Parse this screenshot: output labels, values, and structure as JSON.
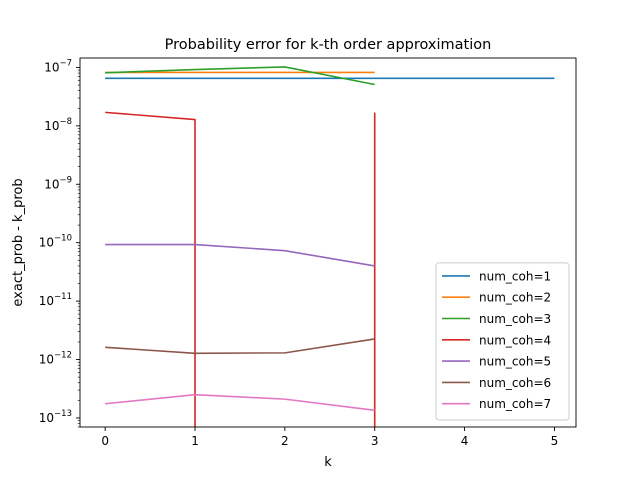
{
  "chart_data": {
    "type": "line",
    "title": "Probability error for k-th order approximation",
    "xlabel": "k",
    "ylabel": "exact_prob - k_prob",
    "yscale": "log",
    "xlim": [
      -0.28,
      5.24
    ],
    "ylim": [
      7e-14,
      1.45e-07
    ],
    "xticks": [
      0,
      1,
      2,
      3,
      4,
      5
    ],
    "yticks": [
      {
        "value": 1e-13,
        "base": "10",
        "exp": "−13"
      },
      {
        "value": 1e-12,
        "base": "10",
        "exp": "−12"
      },
      {
        "value": 1e-11,
        "base": "10",
        "exp": "−11"
      },
      {
        "value": 1e-10,
        "base": "10",
        "exp": "−10"
      },
      {
        "value": 1e-09,
        "base": "10",
        "exp": "−9"
      },
      {
        "value": 1e-08,
        "base": "10",
        "exp": "−8"
      },
      {
        "value": 1e-07,
        "base": "10",
        "exp": "−7"
      }
    ],
    "grid": false,
    "legend_position": "lower-right",
    "series": [
      {
        "name": "num_coh=1",
        "color": "#1f77b4",
        "x": [
          0,
          1,
          2,
          3,
          4,
          5
        ],
        "y": [
          6.5e-08,
          6.5e-08,
          6.5e-08,
          6.5e-08,
          6.5e-08,
          6.5e-08
        ]
      },
      {
        "name": "num_coh=2",
        "color": "#ff7f0e",
        "x": [
          0,
          1,
          2,
          3
        ],
        "y": [
          8.2e-08,
          8.2e-08,
          8.2e-08,
          8.2e-08
        ]
      },
      {
        "name": "num_coh=3",
        "color": "#2ca02c",
        "x": [
          0,
          1,
          2,
          3
        ],
        "y": [
          8.1e-08,
          9.2e-08,
          1.02e-07,
          5.1e-08
        ]
      },
      {
        "name": "num_coh=4",
        "color": "#d62728",
        "x": [
          0,
          1,
          1,
          1,
          3,
          3,
          3
        ],
        "y": [
          1.7e-08,
          1.28e-08,
          5e-14,
          null,
          5e-14,
          1.65e-08,
          5e-14
        ]
      },
      {
        "name": "num_coh=5",
        "color": "#9467bd",
        "x": [
          0,
          1,
          2,
          3
        ],
        "y": [
          9.3e-11,
          9.3e-11,
          7.3e-11,
          4e-11
        ]
      },
      {
        "name": "num_coh=6",
        "color": "#8c564b",
        "x": [
          0,
          1,
          2,
          3
        ],
        "y": [
          1.62e-12,
          1.28e-12,
          1.3e-12,
          2.25e-12
        ]
      },
      {
        "name": "num_coh=7",
        "color": "#e377c2",
        "x": [
          0,
          1,
          2,
          3
        ],
        "y": [
          1.75e-13,
          2.5e-13,
          2.1e-13,
          1.35e-13
        ]
      }
    ]
  }
}
